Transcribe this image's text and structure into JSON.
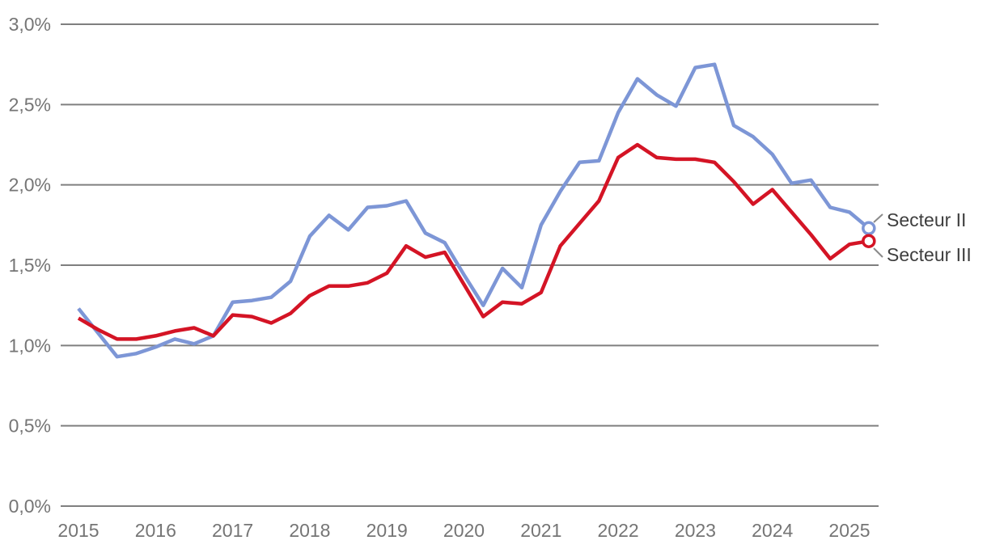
{
  "chart": {
    "background_color": "#ffffff",
    "grid_color": "#7f7f7f",
    "tick_label_color": "#757575",
    "series_label_color": "#3e3e3e",
    "connector_color": "#8a8a8a",
    "y_ticks": [
      {
        "label": "3,0%",
        "value": 3.0
      },
      {
        "label": "2,5%",
        "value": 2.5
      },
      {
        "label": "2,0%",
        "value": 2.0
      },
      {
        "label": "1,5%",
        "value": 1.5
      },
      {
        "label": "1,0%",
        "value": 1.0
      },
      {
        "label": "0,5%",
        "value": 0.5
      },
      {
        "label": "0,0%",
        "value": 0.0
      }
    ],
    "x_ticks": [
      {
        "label": "2015",
        "value": 2015
      },
      {
        "label": "2016",
        "value": 2016
      },
      {
        "label": "2017",
        "value": 2017
      },
      {
        "label": "2018",
        "value": 2018
      },
      {
        "label": "2019",
        "value": 2019
      },
      {
        "label": "2020",
        "value": 2020
      },
      {
        "label": "2021",
        "value": 2021
      },
      {
        "label": "2022",
        "value": 2022
      },
      {
        "label": "2023",
        "value": 2023
      },
      {
        "label": "2024",
        "value": 2024
      },
      {
        "label": "2025",
        "value": 2025
      }
    ]
  },
  "chart_data": {
    "type": "line",
    "title": "",
    "xlabel": "",
    "ylabel": "",
    "grid": true,
    "ylim": [
      0.0,
      3.0
    ],
    "y_tick_step": 0.5,
    "x_start": 2015.0,
    "x_step": 0.25,
    "x_unit": "quarter",
    "legend_position": "right-of-line-end",
    "end_markers": "open-circle",
    "series": [
      {
        "name": "Secteur II",
        "color": "#7d96d6",
        "values": [
          1.23,
          1.08,
          0.93,
          0.95,
          0.99,
          1.04,
          1.01,
          1.06,
          1.27,
          1.28,
          1.3,
          1.4,
          1.68,
          1.81,
          1.72,
          1.86,
          1.87,
          1.9,
          1.7,
          1.64,
          1.44,
          1.25,
          1.48,
          1.36,
          1.75,
          1.96,
          2.14,
          2.15,
          2.45,
          2.66,
          2.56,
          2.49,
          2.73,
          2.75,
          2.37,
          2.3,
          2.19,
          2.01,
          2.03,
          1.86,
          1.83,
          1.73
        ]
      },
      {
        "name": "Secteur III",
        "color": "#d41425",
        "values": [
          1.17,
          1.1,
          1.04,
          1.04,
          1.06,
          1.09,
          1.11,
          1.06,
          1.19,
          1.18,
          1.14,
          1.2,
          1.31,
          1.37,
          1.37,
          1.39,
          1.45,
          1.62,
          1.55,
          1.58,
          1.38,
          1.18,
          1.27,
          1.26,
          1.33,
          1.62,
          1.76,
          1.9,
          2.17,
          2.25,
          2.17,
          2.16,
          2.16,
          2.14,
          2.02,
          1.88,
          1.97,
          1.83,
          1.69,
          1.54,
          1.63,
          1.65
        ]
      }
    ]
  }
}
